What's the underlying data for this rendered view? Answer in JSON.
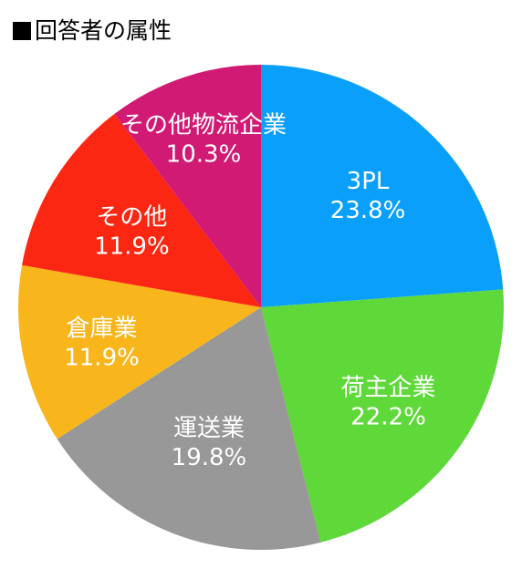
{
  "title": "回答者の属性",
  "chart_data": {
    "type": "pie",
    "title": "回答者の属性",
    "categories": [
      "3PL",
      "荷主企業",
      "運送業",
      "倉庫業",
      "その他",
      "その他物流企業"
    ],
    "values": [
      23.8,
      22.2,
      19.8,
      11.9,
      11.9,
      10.3
    ],
    "value_labels": [
      "23.8%",
      "22.2%",
      "19.8%",
      "11.9%",
      "11.9%",
      "10.3%"
    ],
    "colors": [
      "#0A9FFB",
      "#5FD83A",
      "#989898",
      "#F8B51C",
      "#FB2712",
      "#D11A73"
    ],
    "start": "12 o'clock",
    "direction": "clockwise",
    "legend": "none"
  }
}
